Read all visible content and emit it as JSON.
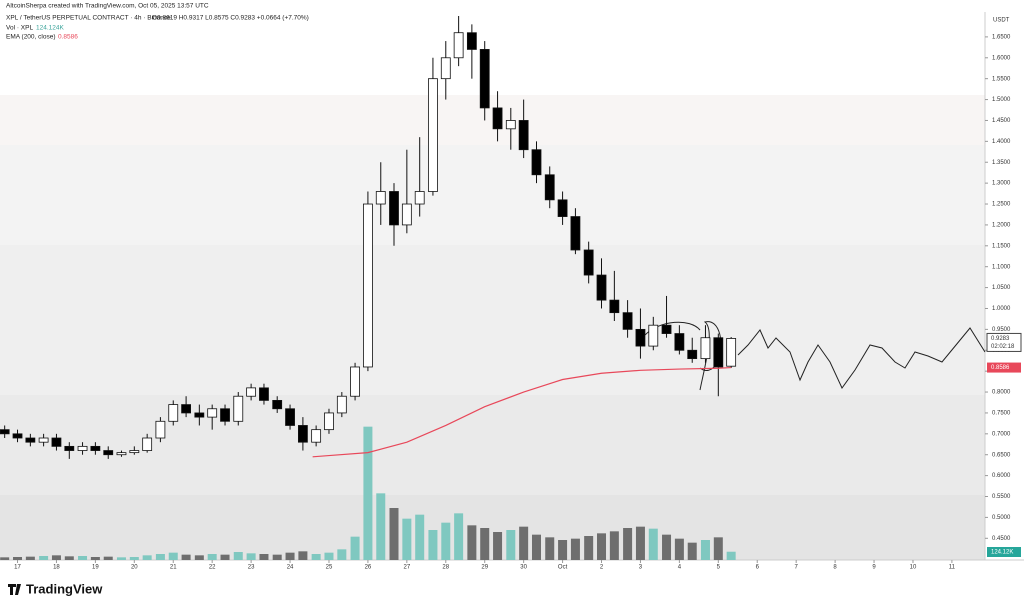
{
  "chart_data": {
    "type": "candlestick",
    "credit": "AltcoinSherpa created with TradingView.com, Oct 05, 2025 13:57 UTC",
    "symbol": "XPL / TetherUS PERPETUAL CONTRACT · 4h · Binance",
    "ohlc_text": "O0.8619 H0.9317 L0.8575 C0.9283 +0.0664 (+7.70%)",
    "vol_label": "Vol · XPL",
    "vol_value": "124.124K",
    "ema_label": "EMA (200, close)",
    "ema_value": "0.8586",
    "currency": "USDT",
    "last_price": "0.9283",
    "countdown": "02:02:18",
    "vol_tag": "124.12K",
    "brand": "TradingView",
    "up_color": "#ffffff",
    "down_color": "#000000",
    "vol_up_color": "#7fc8c0",
    "vol_down_color": "#6e6e6e",
    "x": [
      -0.33,
      0,
      0.33,
      0.67,
      1,
      1.33,
      1.67,
      2,
      2.33,
      2.67,
      3,
      3.33,
      3.67,
      4,
      4.33,
      4.67,
      5,
      5.33,
      5.67,
      6,
      6.33,
      6.67,
      7,
      7.33,
      7.67,
      8,
      8.33,
      8.67,
      9,
      9.33,
      9.67,
      10,
      10.33,
      10.67,
      11,
      11.33,
      11.67,
      12,
      12.33,
      12.67,
      13,
      13.33,
      13.67,
      14,
      14.33,
      14.67,
      15,
      15.33,
      15.67,
      16,
      16.33,
      16.67,
      17,
      17.33,
      17.67,
      18,
      18.33
    ],
    "open": [
      0.71,
      0.7,
      0.69,
      0.68,
      0.69,
      0.67,
      0.66,
      0.67,
      0.66,
      0.65,
      0.655,
      0.66,
      0.69,
      0.73,
      0.77,
      0.75,
      0.74,
      0.76,
      0.73,
      0.79,
      0.81,
      0.78,
      0.76,
      0.72,
      0.68,
      0.71,
      0.75,
      0.79,
      0.86,
      1.25,
      1.28,
      1.2,
      1.25,
      1.28,
      1.55,
      1.6,
      1.66,
      1.62,
      1.48,
      1.43,
      1.45,
      1.38,
      1.32,
      1.26,
      1.22,
      1.14,
      1.08,
      1.02,
      0.99,
      0.95,
      0.91,
      0.96,
      0.94,
      0.9,
      0.88,
      0.93,
      0.8619
    ],
    "high": [
      0.72,
      0.71,
      0.7,
      0.7,
      0.7,
      0.68,
      0.68,
      0.68,
      0.67,
      0.66,
      0.67,
      0.7,
      0.74,
      0.78,
      0.79,
      0.77,
      0.77,
      0.77,
      0.8,
      0.82,
      0.82,
      0.79,
      0.77,
      0.74,
      0.72,
      0.76,
      0.8,
      0.87,
      1.28,
      1.35,
      1.3,
      1.38,
      1.41,
      1.6,
      1.64,
      1.7,
      1.68,
      1.64,
      1.52,
      1.48,
      1.5,
      1.4,
      1.34,
      1.28,
      1.24,
      1.16,
      1.12,
      1.09,
      1.02,
      1.0,
      0.98,
      1.03,
      0.96,
      0.93,
      0.96,
      0.94,
      0.9317
    ],
    "low": [
      0.69,
      0.68,
      0.67,
      0.67,
      0.66,
      0.64,
      0.65,
      0.65,
      0.64,
      0.645,
      0.65,
      0.655,
      0.68,
      0.72,
      0.74,
      0.72,
      0.71,
      0.72,
      0.72,
      0.78,
      0.77,
      0.75,
      0.71,
      0.66,
      0.67,
      0.7,
      0.74,
      0.78,
      0.85,
      1.2,
      1.15,
      1.18,
      1.22,
      1.27,
      1.5,
      1.58,
      1.55,
      1.45,
      1.4,
      1.38,
      1.36,
      1.3,
      1.24,
      1.2,
      1.13,
      1.06,
      1.0,
      0.97,
      0.93,
      0.88,
      0.9,
      0.93,
      0.89,
      0.87,
      0.87,
      0.79,
      0.8575
    ],
    "close": [
      0.7,
      0.69,
      0.68,
      0.69,
      0.67,
      0.66,
      0.67,
      0.66,
      0.65,
      0.655,
      0.66,
      0.69,
      0.73,
      0.77,
      0.75,
      0.74,
      0.76,
      0.73,
      0.79,
      0.81,
      0.78,
      0.76,
      0.72,
      0.68,
      0.71,
      0.75,
      0.79,
      0.86,
      1.25,
      1.28,
      1.2,
      1.25,
      1.28,
      1.55,
      1.6,
      1.66,
      1.62,
      1.48,
      1.43,
      1.45,
      1.38,
      1.32,
      1.26,
      1.22,
      1.14,
      1.08,
      1.02,
      0.99,
      0.95,
      0.91,
      0.96,
      0.94,
      0.9,
      0.88,
      0.93,
      0.86,
      0.9283
    ],
    "volume": [
      40,
      45,
      50,
      60,
      70,
      55,
      60,
      45,
      50,
      40,
      45,
      70,
      90,
      110,
      80,
      70,
      90,
      80,
      120,
      100,
      90,
      80,
      110,
      130,
      90,
      110,
      160,
      350,
      2000,
      1000,
      780,
      620,
      680,
      450,
      560,
      700,
      520,
      480,
      420,
      450,
      500,
      380,
      340,
      300,
      320,
      360,
      400,
      430,
      480,
      500,
      470,
      380,
      320,
      260,
      300,
      340,
      124.124
    ],
    "ema": {
      "color": "#e8485a",
      "x": [
        7.58,
        8,
        9,
        10,
        11,
        12,
        13,
        14,
        15,
        16,
        17,
        18,
        18.33
      ],
      "values": [
        0.645,
        0.648,
        0.655,
        0.68,
        0.72,
        0.765,
        0.8,
        0.83,
        0.845,
        0.852,
        0.855,
        0.857,
        0.8586
      ]
    },
    "xlim": [
      -0.45,
      24.85
    ],
    "ylim": [
      0.41,
      1.7
    ],
    "vlim": [
      0,
      2100
    ],
    "xticks": [
      {
        "value": 0,
        "label": "17"
      },
      {
        "value": 1,
        "label": "18"
      },
      {
        "value": 2,
        "label": "19"
      },
      {
        "value": 3,
        "label": "20"
      },
      {
        "value": 4,
        "label": "21"
      },
      {
        "value": 5,
        "label": "22"
      },
      {
        "value": 6,
        "label": "23"
      },
      {
        "value": 7,
        "label": "24"
      },
      {
        "value": 8,
        "label": "25"
      },
      {
        "value": 9,
        "label": "26"
      },
      {
        "value": 10,
        "label": "27"
      },
      {
        "value": 11,
        "label": "28"
      },
      {
        "value": 12,
        "label": "29"
      },
      {
        "value": 13,
        "label": "30"
      },
      {
        "value": 14,
        "label": "Oct"
      },
      {
        "value": 15,
        "label": "2"
      },
      {
        "value": 16,
        "label": "3"
      },
      {
        "value": 17,
        "label": "4"
      },
      {
        "value": 18,
        "label": "5"
      },
      {
        "value": 19,
        "label": "6"
      },
      {
        "value": 20,
        "label": "7"
      },
      {
        "value": 21,
        "label": "8"
      },
      {
        "value": 22,
        "label": "9"
      },
      {
        "value": 23,
        "label": "10"
      },
      {
        "value": 24,
        "label": "11"
      }
    ],
    "yticks": [
      {
        "value": 0.45,
        "label": "0.4500"
      },
      {
        "value": 0.5,
        "label": "0.5000"
      },
      {
        "value": 0.55,
        "label": "0.5500"
      },
      {
        "value": 0.6,
        "label": "0.6000"
      },
      {
        "value": 0.65,
        "label": "0.6500"
      },
      {
        "value": 0.7,
        "label": "0.7000"
      },
      {
        "value": 0.75,
        "label": "0.7500"
      },
      {
        "value": 0.8,
        "label": "0.8000"
      },
      {
        "value": 0.85,
        "label": "0.8500"
      },
      {
        "value": 0.9,
        "label": "0.9000"
      },
      {
        "value": 0.95,
        "label": "0.9500"
      },
      {
        "value": 1.0,
        "label": "1.0000"
      },
      {
        "value": 1.05,
        "label": "1.0500"
      },
      {
        "value": 1.1,
        "label": "1.1000"
      },
      {
        "value": 1.15,
        "label": "1.1500"
      },
      {
        "value": 1.2,
        "label": "1.2000"
      },
      {
        "value": 1.25,
        "label": "1.2500"
      },
      {
        "value": 1.3,
        "label": "1.3000"
      },
      {
        "value": 1.35,
        "label": "1.3500"
      },
      {
        "value": 1.4,
        "label": "1.4000"
      },
      {
        "value": 1.45,
        "label": "1.4500"
      },
      {
        "value": 1.5,
        "label": "1.5000"
      },
      {
        "value": 1.55,
        "label": "1.5500"
      },
      {
        "value": 1.6,
        "label": "1.6000"
      },
      {
        "value": 1.65,
        "label": "1.6500"
      }
    ]
  }
}
